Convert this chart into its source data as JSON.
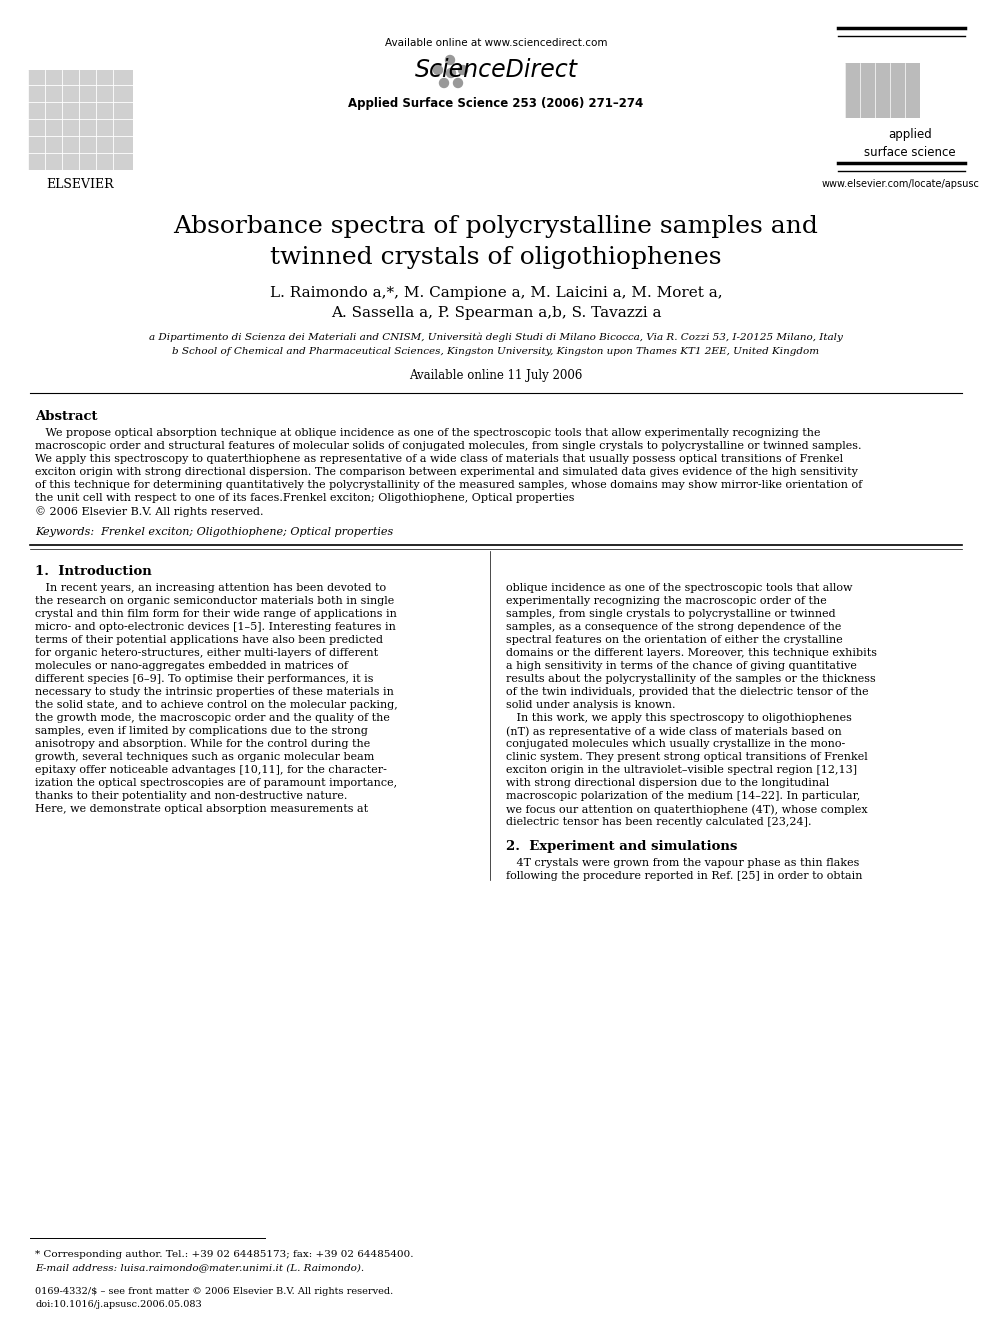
{
  "bg_color": "#ffffff",
  "header_available_online": "Available online at www.sciencedirect.com",
  "header_journal_name": "Applied Surface Science 253 (2006) 271–274",
  "header_elsevier": "ELSEVIER",
  "header_applied_surface": "applied\nsurface science",
  "header_journal_url": "www.elsevier.com/locate/apsusc",
  "title": "Absorbance spectra of polycrystalline samples and\ntwinned crystals of oligothiophenes",
  "authors_line1": "L. Raimondo a,*, M. Campione a, M. Laicini a, M. Moret a,",
  "authors_line2": "A. Sassella a, P. Spearman a,b, S. Tavazzi a",
  "affil_a": "a Dipartimento di Scienza dei Materiali and CNISM, Università degli Studi di Milano Bicocca, Via R. Cozzi 53, I-20125 Milano, Italy",
  "affil_b": "b School of Chemical and Pharmaceutical Sciences, Kingston University, Kingston upon Thames KT1 2EE, United Kingdom",
  "available_online_date": "Available online 11 July 2006",
  "abstract_title": "Abstract",
  "abstract_lines": [
    "   We propose optical absorption technique at oblique incidence as one of the spectroscopic tools that allow experimentally recognizing the",
    "macroscopic order and structural features of molecular solids of conjugated molecules, from single crystals to polycrystalline or twinned samples.",
    "We apply this spectroscopy to quaterthiophene as representative of a wide class of materials that usually possess optical transitions of Frenkel",
    "exciton origin with strong directional dispersion. The comparison between experimental and simulated data gives evidence of the high sensitivity",
    "of this technique for determining quantitatively the polycrystallinity of the measured samples, whose domains may show mirror-like orientation of",
    "the unit cell with respect to one of its faces.Frenkel exciton; Oligothiophene, Optical properties",
    "© 2006 Elsevier B.V. All rights reserved."
  ],
  "keywords": "Keywords:  Frenkel exciton; Oligothiophene; Optical properties",
  "section1_title": "1.  Introduction",
  "col1_lines": [
    "   In recent years, an increasing attention has been devoted to",
    "the research on organic semiconductor materials both in single",
    "crystal and thin film form for their wide range of applications in",
    "micro- and opto-electronic devices [1–5]. Interesting features in",
    "terms of their potential applications have also been predicted",
    "for organic hetero-structures, either multi-layers of different",
    "molecules or nano-aggregates embedded in matrices of",
    "different species [6–9]. To optimise their performances, it is",
    "necessary to study the intrinsic properties of these materials in",
    "the solid state, and to achieve control on the molecular packing,",
    "the growth mode, the macroscopic order and the quality of the",
    "samples, even if limited by complications due to the strong",
    "anisotropy and absorption. While for the control during the",
    "growth, several techniques such as organic molecular beam",
    "epitaxy offer noticeable advantages [10,11], for the character-",
    "ization the optical spectroscopies are of paramount importance,",
    "thanks to their potentiality and non-destructive nature.",
    "Here, we demonstrate optical absorption measurements at"
  ],
  "col2_lines": [
    "oblique incidence as one of the spectroscopic tools that allow",
    "experimentally recognizing the macroscopic order of the",
    "samples, from single crystals to polycrystalline or twinned",
    "samples, as a consequence of the strong dependence of the",
    "spectral features on the orientation of either the crystalline",
    "domains or the different layers. Moreover, this technique exhibits",
    "a high sensitivity in terms of the chance of giving quantitative",
    "results about the polycrystallinity of the samples or the thickness",
    "of the twin individuals, provided that the dielectric tensor of the",
    "solid under analysis is known.",
    "   In this work, we apply this spectroscopy to oligothiophenes",
    "(nT) as representative of a wide class of materials based on",
    "conjugated molecules which usually crystallize in the mono-",
    "clinic system. They present strong optical transitions of Frenkel",
    "exciton origin in the ultraviolet–visible spectral region [12,13]",
    "with strong directional dispersion due to the longitudinal",
    "macroscopic polarization of the medium [14–22]. In particular,",
    "we focus our attention on quaterthiophene (4T), whose complex",
    "dielectric tensor has been recently calculated [23,24]."
  ],
  "section2_title": "2.  Experiment and simulations",
  "section2_lines": [
    "   4T crystals were grown from the vapour phase as thin flakes",
    "following the procedure reported in Ref. [25] in order to obtain"
  ],
  "footnote_star": "* Corresponding author. Tel.: +39 02 64485173; fax: +39 02 64485400.",
  "footnote_email": "E-mail address: luisa.raimondo@mater.unimi.it (L. Raimondo).",
  "footnote_issn": "0169-4332/$ – see front matter © 2006 Elsevier B.V. All rights reserved.",
  "footnote_doi": "doi:10.1016/j.apsusc.2006.05.083"
}
